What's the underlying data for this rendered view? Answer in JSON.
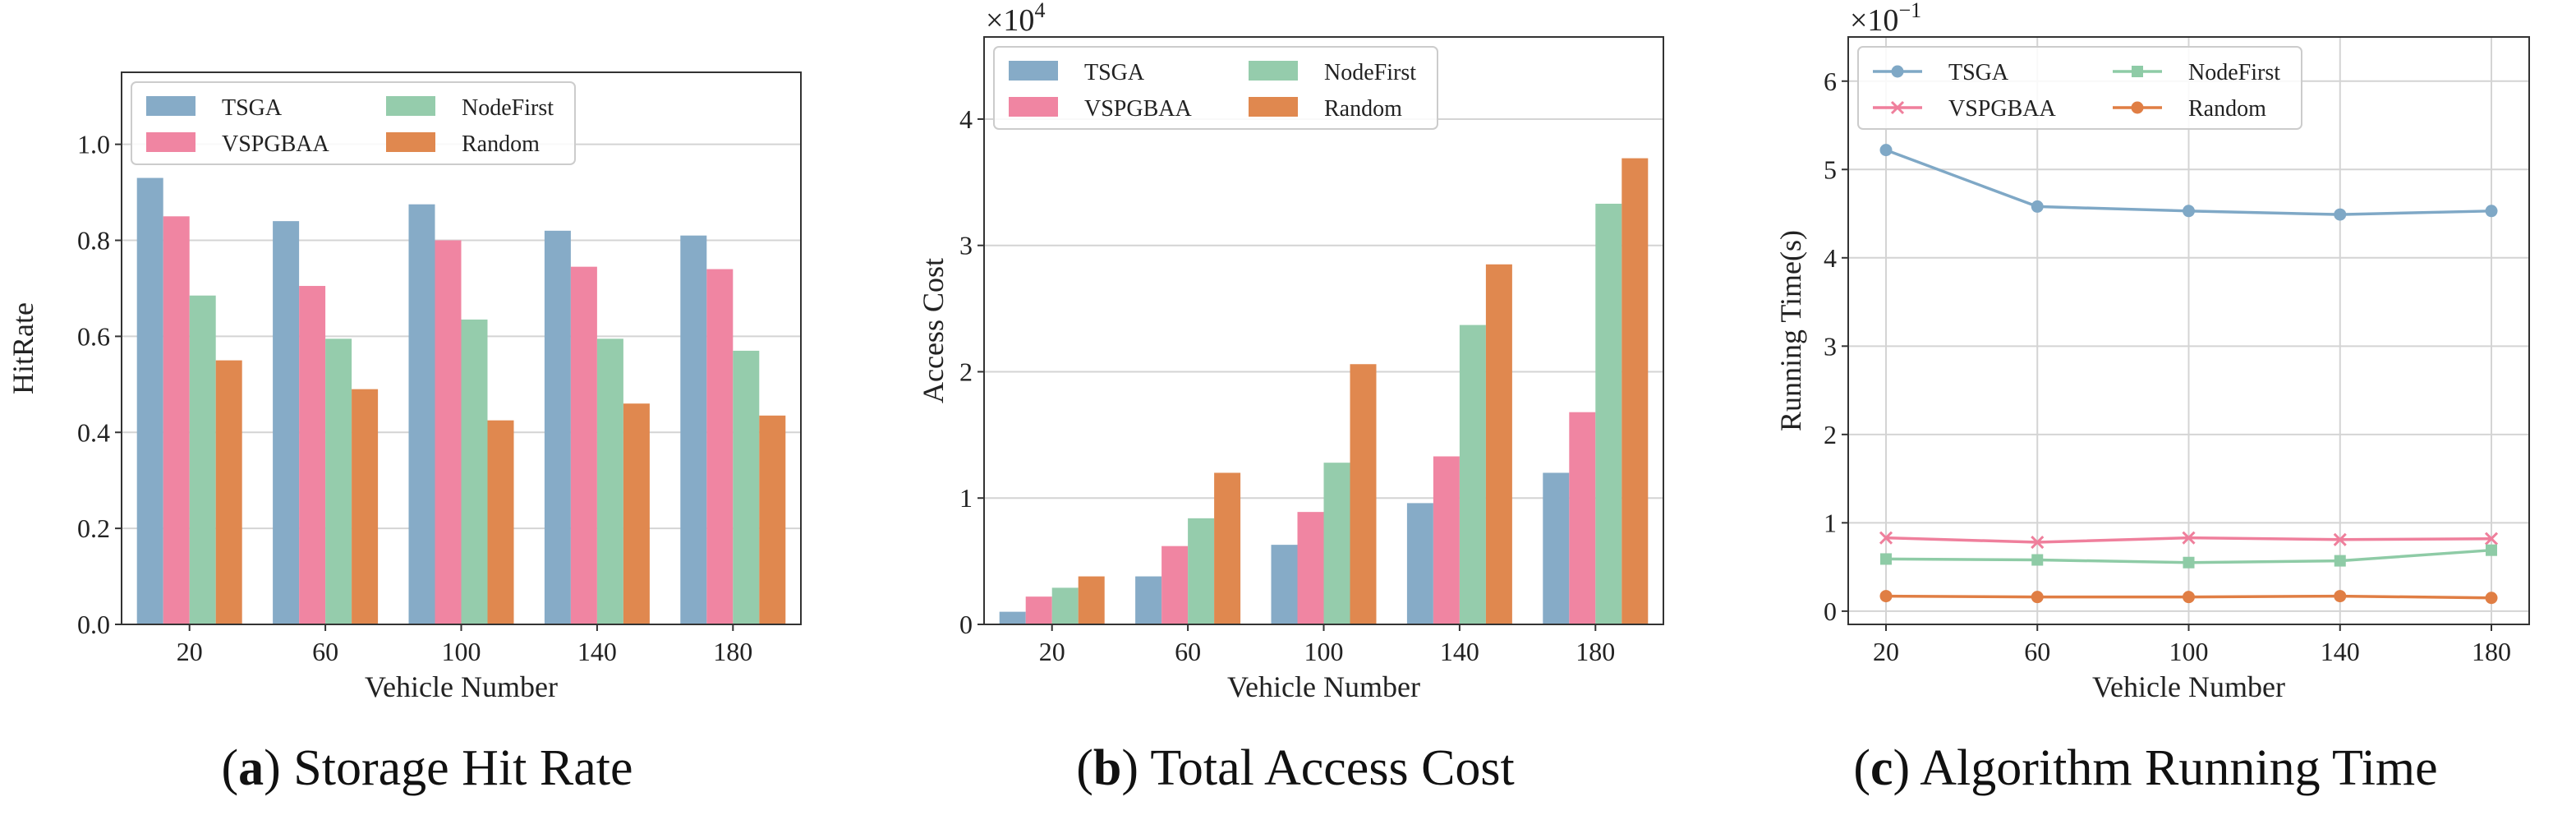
{
  "colors": {
    "TSGA": "#86abc7",
    "VSPGBAA": "#f085a2",
    "NodeFirst": "#95ccac",
    "Random": "#e0884f",
    "TSGA_line": "#7fa8c6",
    "VSPGBAA_line": "#ef7f9c",
    "NodeFirst_line": "#8ecba6",
    "Random_line": "#e07e44"
  },
  "captions": [
    {
      "label": "a",
      "text": "Storage Hit Rate"
    },
    {
      "label": "b",
      "text": "Total Access Cost"
    },
    {
      "label": "c",
      "text": "Algorithm Running Time"
    }
  ],
  "chart_data": [
    {
      "type": "bar",
      "xlabel": "Vehicle Number",
      "ylabel": "HitRate",
      "categories": [
        "20",
        "60",
        "100",
        "140",
        "180"
      ],
      "ylim": [
        0,
        1.15
      ],
      "yticks": [
        "0.0",
        "0.2",
        "0.4",
        "0.6",
        "0.8",
        "1.0"
      ],
      "series": [
        {
          "name": "TSGA",
          "values": [
            0.93,
            0.84,
            0.875,
            0.82,
            0.81
          ]
        },
        {
          "name": "VSPGBAA",
          "values": [
            0.85,
            0.705,
            0.8,
            0.745,
            0.74
          ]
        },
        {
          "name": "NodeFirst",
          "values": [
            0.685,
            0.595,
            0.635,
            0.595,
            0.57
          ]
        },
        {
          "name": "Random",
          "values": [
            0.55,
            0.49,
            0.425,
            0.46,
            0.435
          ]
        }
      ]
    },
    {
      "type": "bar",
      "xlabel": "Vehicle Number",
      "ylabel": "Access Cost",
      "multiplier": "×10",
      "multiplier_exp": "4",
      "categories": [
        "20",
        "60",
        "100",
        "140",
        "180"
      ],
      "ylim": [
        0,
        4.65
      ],
      "yticks": [
        "0",
        "1",
        "2",
        "3",
        "4"
      ],
      "series": [
        {
          "name": "TSGA",
          "values": [
            0.1,
            0.38,
            0.63,
            0.96,
            1.2
          ]
        },
        {
          "name": "VSPGBAA",
          "values": [
            0.22,
            0.62,
            0.89,
            1.33,
            1.68
          ]
        },
        {
          "name": "NodeFirst",
          "values": [
            0.29,
            0.84,
            1.28,
            2.37,
            3.33
          ]
        },
        {
          "name": "Random",
          "values": [
            0.38,
            1.2,
            2.06,
            2.85,
            3.69
          ]
        }
      ]
    },
    {
      "type": "line",
      "xlabel": "Vehicle Number",
      "ylabel": "Running Time(s)",
      "multiplier": "×10",
      "multiplier_exp": "−1",
      "x": [
        "20",
        "60",
        "100",
        "140",
        "180"
      ],
      "ylim": [
        -0.15,
        6.5
      ],
      "yticks": [
        "0",
        "1",
        "2",
        "3",
        "4",
        "5",
        "6"
      ],
      "series": [
        {
          "name": "TSGA",
          "marker": "circle",
          "values": [
            5.22,
            4.58,
            4.53,
            4.49,
            4.53
          ]
        },
        {
          "name": "VSPGBAA",
          "marker": "x",
          "values": [
            0.83,
            0.78,
            0.83,
            0.81,
            0.82
          ]
        },
        {
          "name": "NodeFirst",
          "marker": "square",
          "values": [
            0.59,
            0.58,
            0.55,
            0.57,
            0.69
          ]
        },
        {
          "name": "Random",
          "marker": "circle",
          "values": [
            0.17,
            0.16,
            0.16,
            0.17,
            0.15
          ]
        }
      ]
    }
  ]
}
